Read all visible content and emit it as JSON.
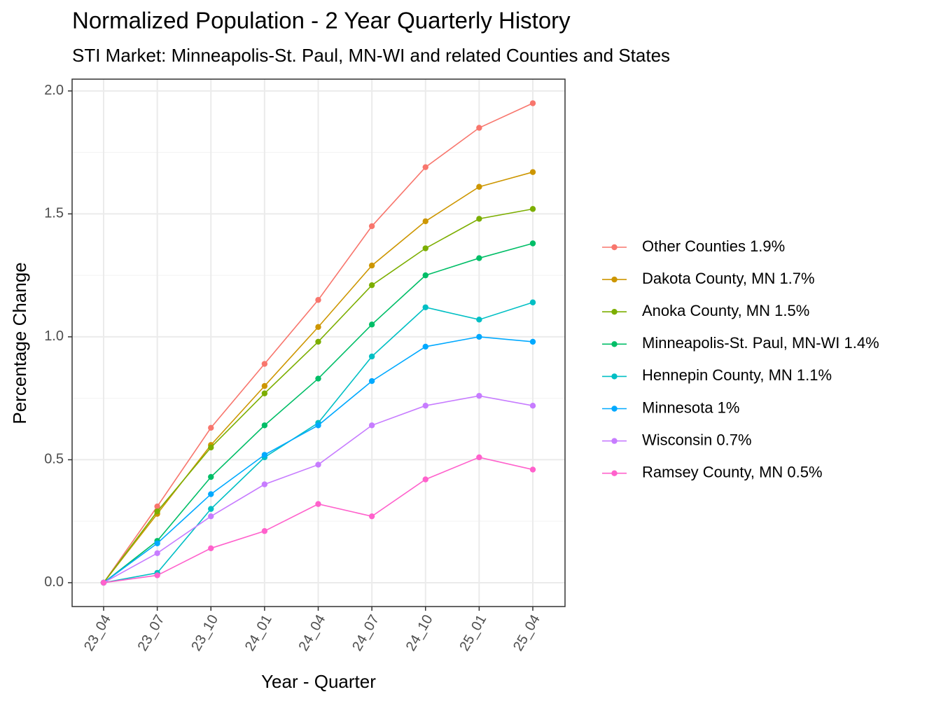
{
  "chart_data": {
    "type": "line",
    "title": "Normalized Population - 2 Year Quarterly History",
    "subtitle": "STI Market: Minneapolis-St. Paul, MN-WI and related Counties and States",
    "x_label": "Year - Quarter",
    "y_label": "Percentage Change",
    "categories": [
      "23_04",
      "23_07",
      "23_10",
      "24_01",
      "24_04",
      "24_07",
      "24_10",
      "25_01",
      "25_04"
    ],
    "ylim": [
      -0.097,
      2.048
    ],
    "yticks": [
      {
        "value": 0,
        "label": "0.0"
      },
      0.5,
      {
        "value": 1,
        "label": "1.0"
      },
      1.5,
      {
        "value": 2,
        "label": "2.0"
      }
    ],
    "grid": true,
    "legend": "right",
    "series": [
      {
        "name": "Other Counties 1.9%",
        "color": "#F8766D",
        "values": [
          0,
          0.31,
          0.63,
          0.89,
          1.15,
          1.45,
          1.69,
          1.85,
          1.95
        ]
      },
      {
        "name": "Dakota County, MN 1.7%",
        "color": "#CD9600",
        "values": [
          0,
          0.28,
          0.56,
          0.8,
          1.04,
          1.29,
          1.47,
          1.61,
          1.67
        ]
      },
      {
        "name": "Anoka County, MN 1.5%",
        "color": "#7CAE00",
        "values": [
          0,
          0.29,
          0.55,
          0.77,
          0.98,
          1.21,
          1.36,
          1.48,
          1.52
        ]
      },
      {
        "name": "Minneapolis-St. Paul, MN-WI 1.4%",
        "color": "#00BE67",
        "values": [
          0,
          0.17,
          0.43,
          0.64,
          0.83,
          1.05,
          1.25,
          1.32,
          1.38
        ]
      },
      {
        "name": "Hennepin County, MN 1.1%",
        "color": "#00BFC4",
        "values": [
          0,
          0.04,
          0.3,
          0.51,
          0.65,
          0.92,
          1.12,
          1.07,
          1.14
        ]
      },
      {
        "name": "Minnesota 1%",
        "color": "#00A9FF",
        "values": [
          0,
          0.16,
          0.36,
          0.52,
          0.64,
          0.82,
          0.96,
          1.0,
          0.98
        ]
      },
      {
        "name": "Wisconsin 0.7%",
        "color": "#C77CFF",
        "values": [
          0,
          0.12,
          0.27,
          0.4,
          0.48,
          0.64,
          0.72,
          0.76,
          0.72
        ]
      },
      {
        "name": "Ramsey County, MN 0.5%",
        "color": "#FF61CC",
        "values": [
          0,
          0.03,
          0.14,
          0.21,
          0.32,
          0.27,
          0.42,
          0.51,
          0.46
        ]
      }
    ]
  }
}
